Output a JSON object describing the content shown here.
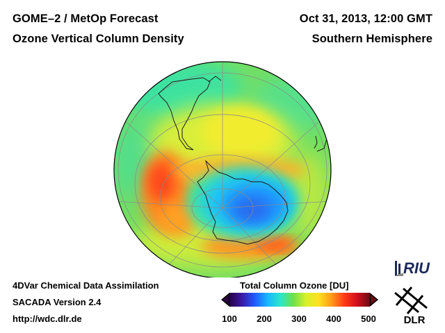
{
  "header": {
    "title_left": "GOME–2 / MetOp Forecast",
    "subtitle_left": "Ozone Vertical Column Density",
    "title_right": "Oct 31, 2013, 12:00 GMT",
    "subtitle_right": "Southern Hemisphere"
  },
  "footer": {
    "line1": "4DVar Chemical Data Assimilation",
    "line2": "SACADA Version 2.4",
    "line3": "http://wdc.dlr.de"
  },
  "colorbar": {
    "title": "Total Column Ozone [DU]",
    "ticks": [
      "100",
      "200",
      "300",
      "400",
      "500"
    ],
    "range": [
      100,
      500
    ],
    "colors": [
      "#2a0046",
      "#3a1aa8",
      "#1f5cff",
      "#17b8ff",
      "#2be6c8",
      "#6ee04a",
      "#d8f02a",
      "#ffe020",
      "#ff9a18",
      "#ff3a16",
      "#d0101a",
      "#6a0a14"
    ]
  },
  "map": {
    "projection": "orthographic, South Pole centered",
    "ozone_hole_center_du": 190,
    "collar_max_du": 420,
    "background_du": 300,
    "colors": {
      "hole": "#2a7cf0",
      "collar": "#ff6a2a",
      "midlat": "#7ce06a",
      "coast": "#1a1a1a",
      "grid": "#8a8a8a"
    }
  },
  "logos": {
    "riu_text": "RIU",
    "dlr_text": "DLR"
  }
}
